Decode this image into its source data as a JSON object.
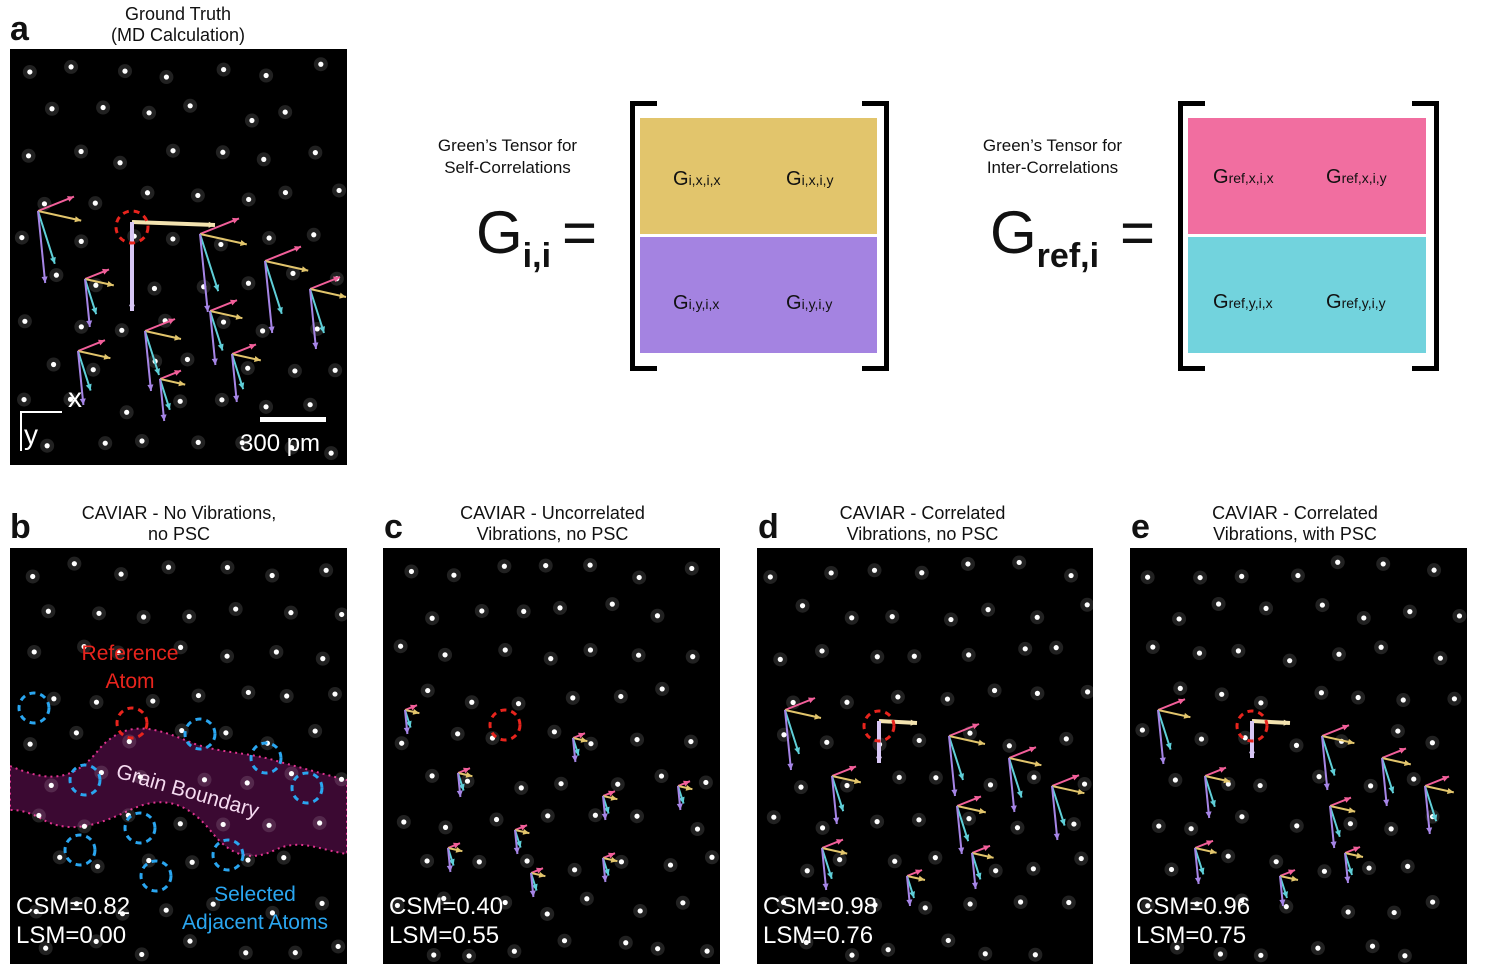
{
  "panel_a": {
    "letter": "a",
    "title_line1": "Ground Truth",
    "title_line2": "(MD Calculation)",
    "axis_x": "x",
    "axis_y": "y",
    "scale_bar": "300 pm"
  },
  "tensor_self": {
    "caption_line1": "Green’s Tensor for",
    "caption_line2": "Self-Correlations",
    "symbol": "G",
    "symbol_sub": "i,i",
    "equals": "=",
    "top_color": "#e2c56c",
    "bottom_color": "#a483e1",
    "cells": [
      {
        "g": "G",
        "s": "i,x,i,x"
      },
      {
        "g": "G",
        "s": "i,x,i,y"
      },
      {
        "g": "G",
        "s": "i,y,i,x"
      },
      {
        "g": "G",
        "s": "i,y,i,y"
      }
    ]
  },
  "tensor_inter": {
    "caption_line1": "Green’s Tensor for",
    "caption_line2": "Inter-Correlations",
    "symbol": "G",
    "symbol_sub": "ref,i",
    "equals": "=",
    "top_color": "#f16ea0",
    "bottom_color": "#72d3dd",
    "cells": [
      {
        "g": "G",
        "s": "ref,x,i,x"
      },
      {
        "g": "G",
        "s": "ref,x,i,y"
      },
      {
        "g": "G",
        "s": "ref,y,i,x"
      },
      {
        "g": "G",
        "s": "ref,y,i,y"
      }
    ]
  },
  "panel_b": {
    "letter": "b",
    "title_line1": "CAVIAR - No Vibrations,",
    "title_line2": "no PSC",
    "reference_line1": "Reference",
    "reference_line2": "Atom",
    "grain_boundary": "Grain Boundary",
    "selected_line1": "Selected",
    "selected_line2": "Adjacent Atoms",
    "csm": "CSM=0.82",
    "lsm": "LSM=0.00"
  },
  "panel_c": {
    "letter": "c",
    "title_line1": "CAVIAR - Uncorrelated",
    "title_line2": "Vibrations, no PSC",
    "csm": "CSM=0.40",
    "lsm": "LSM=0.55"
  },
  "panel_d": {
    "letter": "d",
    "title_line1": "CAVIAR - Correlated",
    "title_line2": "Vibrations, no PSC",
    "csm": "CSM=0.98",
    "lsm": "LSM=0.76"
  },
  "panel_e": {
    "letter": "e",
    "title_line1": "CAVIAR - Correlated",
    "title_line2": "Vibrations, with PSC",
    "csm": "CSM=0.96",
    "lsm": "LSM=0.75"
  },
  "colors": {
    "arrow_pink": "#f25f9a",
    "arrow_gold": "#e2c56c",
    "arrow_cyan": "#5fcfd8",
    "arrow_purple": "#a685e6",
    "reference_circle": "#e8241d",
    "selected_circle": "#2aa6f0",
    "reference_text": "#e8241d",
    "selected_text": "#2aa6f0"
  }
}
